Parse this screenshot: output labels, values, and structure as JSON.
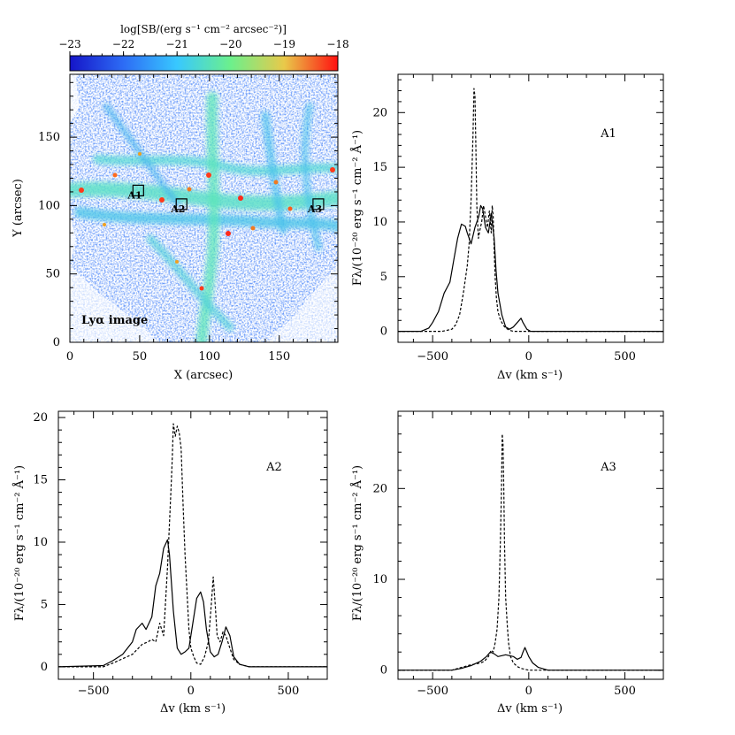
{
  "chart_data": [
    {
      "type": "heatmap",
      "id": "lya-image",
      "xlabel": "X (arcsec)",
      "ylabel": "Y (arcsec)",
      "xlim": [
        0,
        192
      ],
      "ylim": [
        0,
        196
      ],
      "xticks": [
        0,
        50,
        100,
        150
      ],
      "yticks": [
        0,
        50,
        100,
        150
      ],
      "colorbar": {
        "label": "log[SB/(erg s⁻¹ cm⁻² arcsec⁻²)]",
        "range": [
          -23,
          -18
        ],
        "ticks": [
          -23,
          -22,
          -21,
          -20,
          -19,
          -18
        ],
        "colors": [
          "#1515c8",
          "#2d6cf5",
          "#38c8ff",
          "#6cf08c",
          "#e9c94a",
          "#ff1010"
        ]
      },
      "annotation": "Lyα image",
      "regions": [
        {
          "label": "A1",
          "x": 49,
          "y": 111
        },
        {
          "label": "A2",
          "x": 80,
          "y": 101
        },
        {
          "label": "A3",
          "x": 178,
          "y": 101
        }
      ]
    },
    {
      "type": "line",
      "id": "A1",
      "panel_label": "A1",
      "xlabel": "Δv  (km s⁻¹)",
      "ylabel": "Fλ/(10⁻²⁰ erg s⁻¹ cm⁻² Å⁻¹)",
      "xlim": [
        -680,
        700
      ],
      "ylim": [
        -1,
        23.5
      ],
      "xticks": [
        -500,
        0,
        500
      ],
      "yticks": [
        0,
        5,
        10,
        15,
        20
      ],
      "series": [
        {
          "style": "solid",
          "x": [
            -680,
            -560,
            -520,
            -500,
            -470,
            -440,
            -410,
            -390,
            -370,
            -350,
            -330,
            -320,
            -300,
            -280,
            -260,
            -250,
            -240,
            -225,
            -210,
            -195,
            -180,
            -170,
            -160,
            -140,
            -120,
            -100,
            -80,
            -60,
            -40,
            -30,
            -10,
            10,
            40,
            70,
            100,
            700
          ],
          "y": [
            0,
            0,
            0.3,
            0.8,
            1.8,
            3.5,
            4.5,
            6.5,
            8.5,
            9.8,
            9.6,
            9.0,
            8.0,
            9.5,
            10.5,
            11.5,
            11.2,
            9.5,
            9.0,
            10.8,
            8.5,
            5.5,
            3.5,
            1.5,
            0.4,
            0.2,
            0.4,
            0.8,
            1.2,
            0.8,
            0.2,
            0,
            0,
            0,
            0,
            0
          ]
        },
        {
          "style": "dashed",
          "x": [
            -680,
            -450,
            -400,
            -380,
            -360,
            -340,
            -320,
            -310,
            -300,
            -290,
            -285,
            -280,
            -275,
            -270,
            -262,
            -255,
            -245,
            -235,
            -225,
            -215,
            -205,
            -195,
            -190,
            -185,
            -180,
            -175,
            -168,
            -160,
            -150,
            -140,
            -130,
            -120,
            -100,
            -80,
            700
          ],
          "y": [
            0,
            0,
            0.2,
            0.6,
            1.5,
            3.5,
            6.0,
            8.0,
            12.0,
            18.0,
            22.2,
            21.5,
            17.0,
            11.5,
            8.5,
            9.2,
            10.0,
            11.5,
            10.5,
            9.5,
            11.0,
            9.0,
            11.5,
            10.5,
            7.5,
            5.0,
            3.0,
            1.8,
            1.2,
            0.8,
            0.5,
            0.3,
            0.1,
            0,
            0
          ]
        }
      ]
    },
    {
      "type": "line",
      "id": "A2",
      "panel_label": "A2",
      "xlabel": "Δv  (km s⁻¹)",
      "ylabel": "Fλ/(10⁻²⁰ erg s⁻¹ cm⁻² Å⁻¹)",
      "xlim": [
        -680,
        700
      ],
      "ylim": [
        -1,
        20.5
      ],
      "xticks": [
        -500,
        0,
        500
      ],
      "yticks": [
        0,
        5,
        10,
        15,
        20
      ],
      "series": [
        {
          "style": "solid",
          "x": [
            -680,
            -450,
            -400,
            -350,
            -300,
            -280,
            -250,
            -230,
            -215,
            -200,
            -180,
            -160,
            -140,
            -120,
            -110,
            -90,
            -70,
            -50,
            -30,
            -10,
            10,
            30,
            50,
            65,
            80,
            100,
            120,
            140,
            160,
            180,
            200,
            220,
            250,
            300,
            700
          ],
          "y": [
            0,
            0.1,
            0.5,
            1.0,
            2.0,
            3.0,
            3.5,
            3.0,
            3.5,
            4.0,
            6.5,
            7.5,
            9.5,
            10.2,
            9.0,
            4.5,
            1.5,
            1.0,
            1.2,
            1.5,
            3.5,
            5.5,
            6.0,
            5.2,
            3.0,
            1.2,
            0.8,
            1.0,
            2.0,
            3.2,
            2.5,
            0.8,
            0.2,
            0,
            0
          ]
        },
        {
          "style": "dashed",
          "x": [
            -680,
            -450,
            -400,
            -300,
            -250,
            -220,
            -200,
            -180,
            -160,
            -140,
            -120,
            -100,
            -95,
            -90,
            -80,
            -70,
            -60,
            -50,
            -40,
            -30,
            -20,
            -10,
            0,
            15,
            30,
            50,
            70,
            90,
            105,
            115,
            125,
            135,
            150,
            165,
            180,
            200,
            220,
            250,
            300,
            700
          ],
          "y": [
            0,
            0,
            0.3,
            1.0,
            1.8,
            2.0,
            2.2,
            2.0,
            3.5,
            2.5,
            8.0,
            15.0,
            17.0,
            19.5,
            18.5,
            19.3,
            18.8,
            17.5,
            13.0,
            9.0,
            6.0,
            3.0,
            1.5,
            0.8,
            0.3,
            0.2,
            0.8,
            2.0,
            5.0,
            7.2,
            5.0,
            2.5,
            2.0,
            2.8,
            2.5,
            1.5,
            0.6,
            0.2,
            0,
            0
          ]
        }
      ]
    },
    {
      "type": "line",
      "id": "A3",
      "panel_label": "A3",
      "xlabel": "Δv  (km s⁻¹)",
      "ylabel": "Fλ/(10⁻²⁰ erg s⁻¹ cm⁻² Å⁻¹)",
      "xlim": [
        -680,
        700
      ],
      "ylim": [
        -1,
        28.5
      ],
      "xticks": [
        -500,
        0,
        500
      ],
      "yticks": [
        0,
        10,
        20
      ],
      "series": [
        {
          "style": "solid",
          "x": [
            -680,
            -400,
            -350,
            -300,
            -250,
            -220,
            -200,
            -180,
            -160,
            -140,
            -120,
            -100,
            -80,
            -60,
            -40,
            -30,
            -20,
            -10,
            0,
            20,
            50,
            100,
            700
          ],
          "y": [
            0,
            0,
            0.2,
            0.5,
            1.0,
            1.5,
            2.0,
            1.8,
            1.5,
            1.6,
            1.7,
            1.6,
            1.5,
            1.2,
            1.4,
            2.0,
            2.5,
            2.0,
            1.5,
            0.8,
            0.3,
            0,
            0
          ]
        },
        {
          "style": "dashed",
          "x": [
            -680,
            -400,
            -350,
            -300,
            -250,
            -230,
            -210,
            -195,
            -185,
            -175,
            -165,
            -155,
            -148,
            -142,
            -138,
            -134,
            -130,
            -126,
            -120,
            -112,
            -105,
            -95,
            -80,
            -60,
            -40,
            -20,
            0,
            700
          ],
          "y": [
            0,
            0,
            0.3,
            0.6,
            0.8,
            1.0,
            1.5,
            2.2,
            2.0,
            3.0,
            4.5,
            8.0,
            14.0,
            20.0,
            26.0,
            25.0,
            20.0,
            14.0,
            8.0,
            5.0,
            3.0,
            1.5,
            0.8,
            0.4,
            0.2,
            0.1,
            0,
            0
          ]
        }
      ]
    }
  ]
}
